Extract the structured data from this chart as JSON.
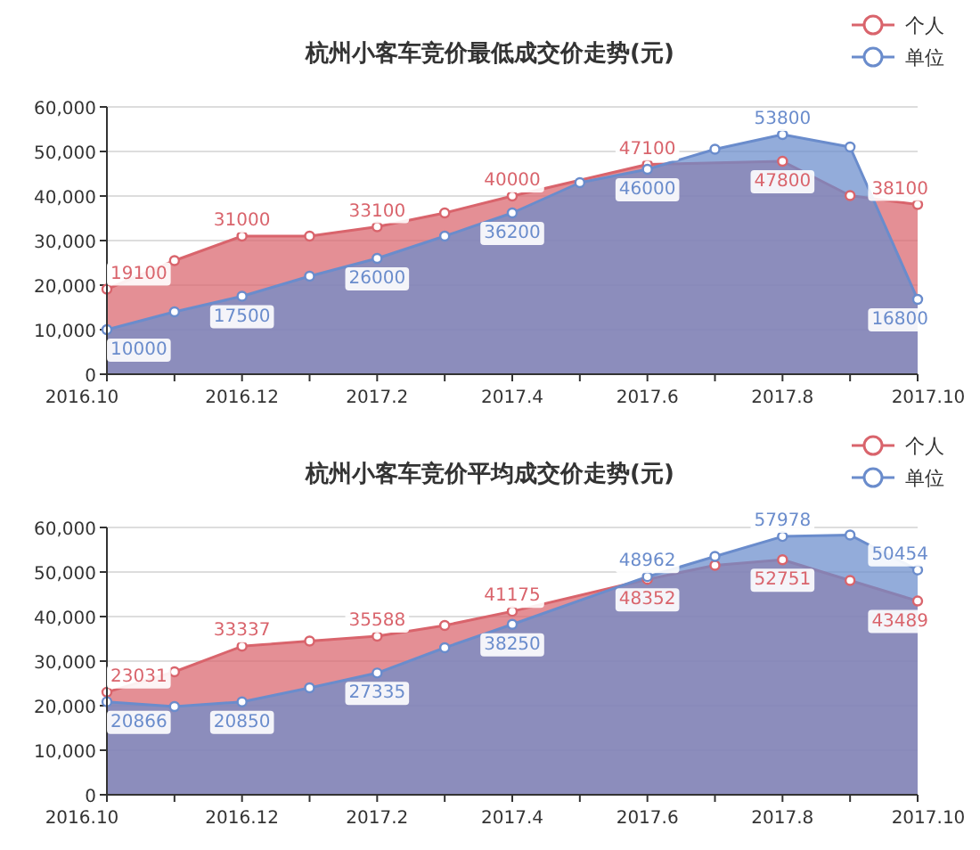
{
  "chart_data": [
    {
      "type": "area",
      "title": "杭州小客车竞价最低成交价走势(元)",
      "categories": [
        "2016.10",
        null,
        "2016.12",
        null,
        "2017.2",
        null,
        "2017.4",
        null,
        "2017.6",
        null,
        "2017.8",
        null,
        "2017.10"
      ],
      "ylim": [
        0,
        60000
      ],
      "yticks": [
        {
          "value": 0,
          "label": "0"
        },
        {
          "value": 10000,
          "label": "10,000"
        },
        {
          "value": 20000,
          "label": "20,000"
        },
        {
          "value": 30000,
          "label": "30,000"
        },
        {
          "value": 40000,
          "label": "40,000"
        },
        {
          "value": 50000,
          "label": "50,000"
        },
        {
          "value": 60000,
          "label": "60,000"
        }
      ],
      "grid": "y",
      "legend": "top right",
      "marker": "circle",
      "series": [
        {
          "name": "个人",
          "color": "#d9646c",
          "values": [
            19100,
            25500,
            31000,
            31000,
            33100,
            36200,
            40000,
            null,
            47100,
            null,
            47800,
            40100,
            38100
          ],
          "value_labels": [
            "19100",
            null,
            "31000",
            null,
            "33100",
            null,
            "40000",
            null,
            "47100",
            null,
            "47800",
            null,
            "38100"
          ]
        },
        {
          "name": "单位",
          "color": "#6a8ccc",
          "values": [
            10000,
            14000,
            17500,
            22000,
            26000,
            31000,
            36200,
            43000,
            46000,
            50500,
            53800,
            51000,
            16800
          ],
          "value_labels": [
            "10000",
            null,
            "17500",
            null,
            "26000",
            null,
            "36200",
            null,
            "46000",
            null,
            "53800",
            null,
            "16800"
          ]
        }
      ]
    },
    {
      "type": "area",
      "title": "杭州小客车竞价平均成交价走势(元)",
      "categories": [
        "2016.10",
        null,
        "2016.12",
        null,
        "2017.2",
        null,
        "2017.4",
        null,
        "2017.6",
        null,
        "2017.8",
        null,
        "2017.10"
      ],
      "ylim": [
        0,
        60000
      ],
      "yticks": [
        {
          "value": 0,
          "label": "0"
        },
        {
          "value": 10000,
          "label": "10,000"
        },
        {
          "value": 20000,
          "label": "20,000"
        },
        {
          "value": 30000,
          "label": "30,000"
        },
        {
          "value": 40000,
          "label": "40,000"
        },
        {
          "value": 50000,
          "label": "50,000"
        },
        {
          "value": 60000,
          "label": "60,000"
        }
      ],
      "grid": "y",
      "legend": "top right",
      "marker": "circle",
      "series": [
        {
          "name": "个人",
          "color": "#d9646c",
          "values": [
            23031,
            27600,
            33337,
            34500,
            35588,
            38000,
            41175,
            null,
            48352,
            51500,
            52751,
            48100,
            43489
          ],
          "value_labels": [
            "23031",
            null,
            "33337",
            null,
            "35588",
            null,
            "41175",
            null,
            "48352",
            null,
            "52751",
            null,
            "43489"
          ]
        },
        {
          "name": "单位",
          "color": "#6a8ccc",
          "values": [
            20866,
            19800,
            20850,
            24000,
            27335,
            33000,
            38250,
            null,
            48962,
            53500,
            57978,
            58300,
            50454
          ],
          "value_labels": [
            "20866",
            null,
            "20850",
            null,
            "27335",
            null,
            "38250",
            null,
            "48962",
            null,
            "57978",
            null,
            "50454"
          ]
        }
      ]
    }
  ]
}
